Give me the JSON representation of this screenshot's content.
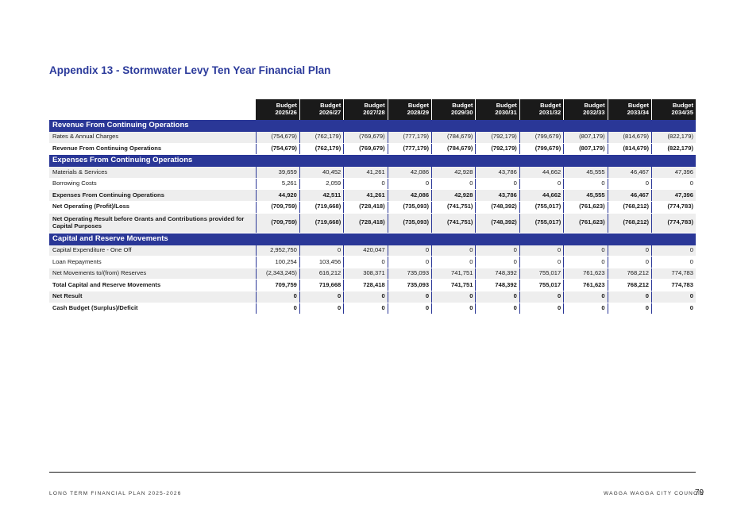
{
  "title": "Appendix 13 - Stormwater Levy Ten Year Financial Plan",
  "columns": [
    {
      "line1": "Budget",
      "line2": "2025/26"
    },
    {
      "line1": "Budget",
      "line2": "2026/27"
    },
    {
      "line1": "Budget",
      "line2": "2027/28"
    },
    {
      "line1": "Budget",
      "line2": "2028/29"
    },
    {
      "line1": "Budget",
      "line2": "2029/30"
    },
    {
      "line1": "Budget",
      "line2": "2030/31"
    },
    {
      "line1": "Budget",
      "line2": "2031/32"
    },
    {
      "line1": "Budget",
      "line2": "2032/33"
    },
    {
      "line1": "Budget",
      "line2": "2033/34"
    },
    {
      "line1": "Budget",
      "line2": "2034/35"
    }
  ],
  "sections": [
    {
      "title": "Revenue From Continuing Operations",
      "rows": [
        {
          "label": "Rates & Annual Charges",
          "bold": false,
          "values": [
            "(754,679)",
            "(762,179)",
            "(769,679)",
            "(777,179)",
            "(784,679)",
            "(792,179)",
            "(799,679)",
            "(807,179)",
            "(814,679)",
            "(822,179)"
          ]
        },
        {
          "label": "Revenue From Continuing Operations",
          "bold": true,
          "values": [
            "(754,679)",
            "(762,179)",
            "(769,679)",
            "(777,179)",
            "(784,679)",
            "(792,179)",
            "(799,679)",
            "(807,179)",
            "(814,679)",
            "(822,179)"
          ]
        }
      ]
    },
    {
      "title": "Expenses From Continuing Operations",
      "rows": [
        {
          "label": "Materials & Services",
          "bold": false,
          "values": [
            "39,659",
            "40,452",
            "41,261",
            "42,086",
            "42,928",
            "43,786",
            "44,662",
            "45,555",
            "46,467",
            "47,396"
          ]
        },
        {
          "label": "Borrowing Costs",
          "bold": false,
          "values": [
            "5,261",
            "2,059",
            "0",
            "0",
            "0",
            "0",
            "0",
            "0",
            "0",
            "0"
          ]
        },
        {
          "label": "Expenses From Continuing Operations",
          "bold": true,
          "values": [
            "44,920",
            "42,511",
            "41,261",
            "42,086",
            "42,928",
            "43,786",
            "44,662",
            "45,555",
            "46,467",
            "47,396"
          ]
        },
        {
          "label": "Net Operating (Profit)/Loss",
          "bold": true,
          "values": [
            "(709,759)",
            "(719,668)",
            "(728,418)",
            "(735,093)",
            "(741,751)",
            "(748,392)",
            "(755,017)",
            "(761,623)",
            "(768,212)",
            "(774,783)"
          ]
        },
        {
          "label": "Net Operating Result before Grants and Contributions provided for Capital Purposes",
          "bold": true,
          "tall": true,
          "values": [
            "(709,759)",
            "(719,668)",
            "(728,418)",
            "(735,093)",
            "(741,751)",
            "(748,392)",
            "(755,017)",
            "(761,623)",
            "(768,212)",
            "(774,783)"
          ]
        }
      ]
    },
    {
      "title": "Capital and Reserve Movements",
      "rows": [
        {
          "label": "Capital Expenditure - One Off",
          "bold": false,
          "values": [
            "2,952,750",
            "0",
            "420,047",
            "0",
            "0",
            "0",
            "0",
            "0",
            "0",
            "0"
          ]
        },
        {
          "label": "Loan Repayments",
          "bold": false,
          "values": [
            "100,254",
            "103,456",
            "0",
            "0",
            "0",
            "0",
            "0",
            "0",
            "0",
            "0"
          ]
        },
        {
          "label": "Net Movements to/(from) Reserves",
          "bold": false,
          "values": [
            "(2,343,245)",
            "616,212",
            "308,371",
            "735,093",
            "741,751",
            "748,392",
            "755,017",
            "761,623",
            "768,212",
            "774,783"
          ]
        },
        {
          "label": "Total Capital and Reserve Movements",
          "bold": true,
          "values": [
            "709,759",
            "719,668",
            "728,418",
            "735,093",
            "741,751",
            "748,392",
            "755,017",
            "761,623",
            "768,212",
            "774,783"
          ]
        },
        {
          "label": "Net Result",
          "bold": true,
          "values": [
            "0",
            "0",
            "0",
            "0",
            "0",
            "0",
            "0",
            "0",
            "0",
            "0"
          ]
        },
        {
          "label": "Cash Budget (Surplus)/Deficit",
          "bold": true,
          "values": [
            "0",
            "0",
            "0",
            "0",
            "0",
            "0",
            "0",
            "0",
            "0",
            "0"
          ]
        }
      ]
    }
  ],
  "footer": {
    "left": "LONG TERM FINANCIAL PLAN 2025-2026",
    "right": "WAGGA WAGGA CITY COUNCIL",
    "page": "79"
  }
}
